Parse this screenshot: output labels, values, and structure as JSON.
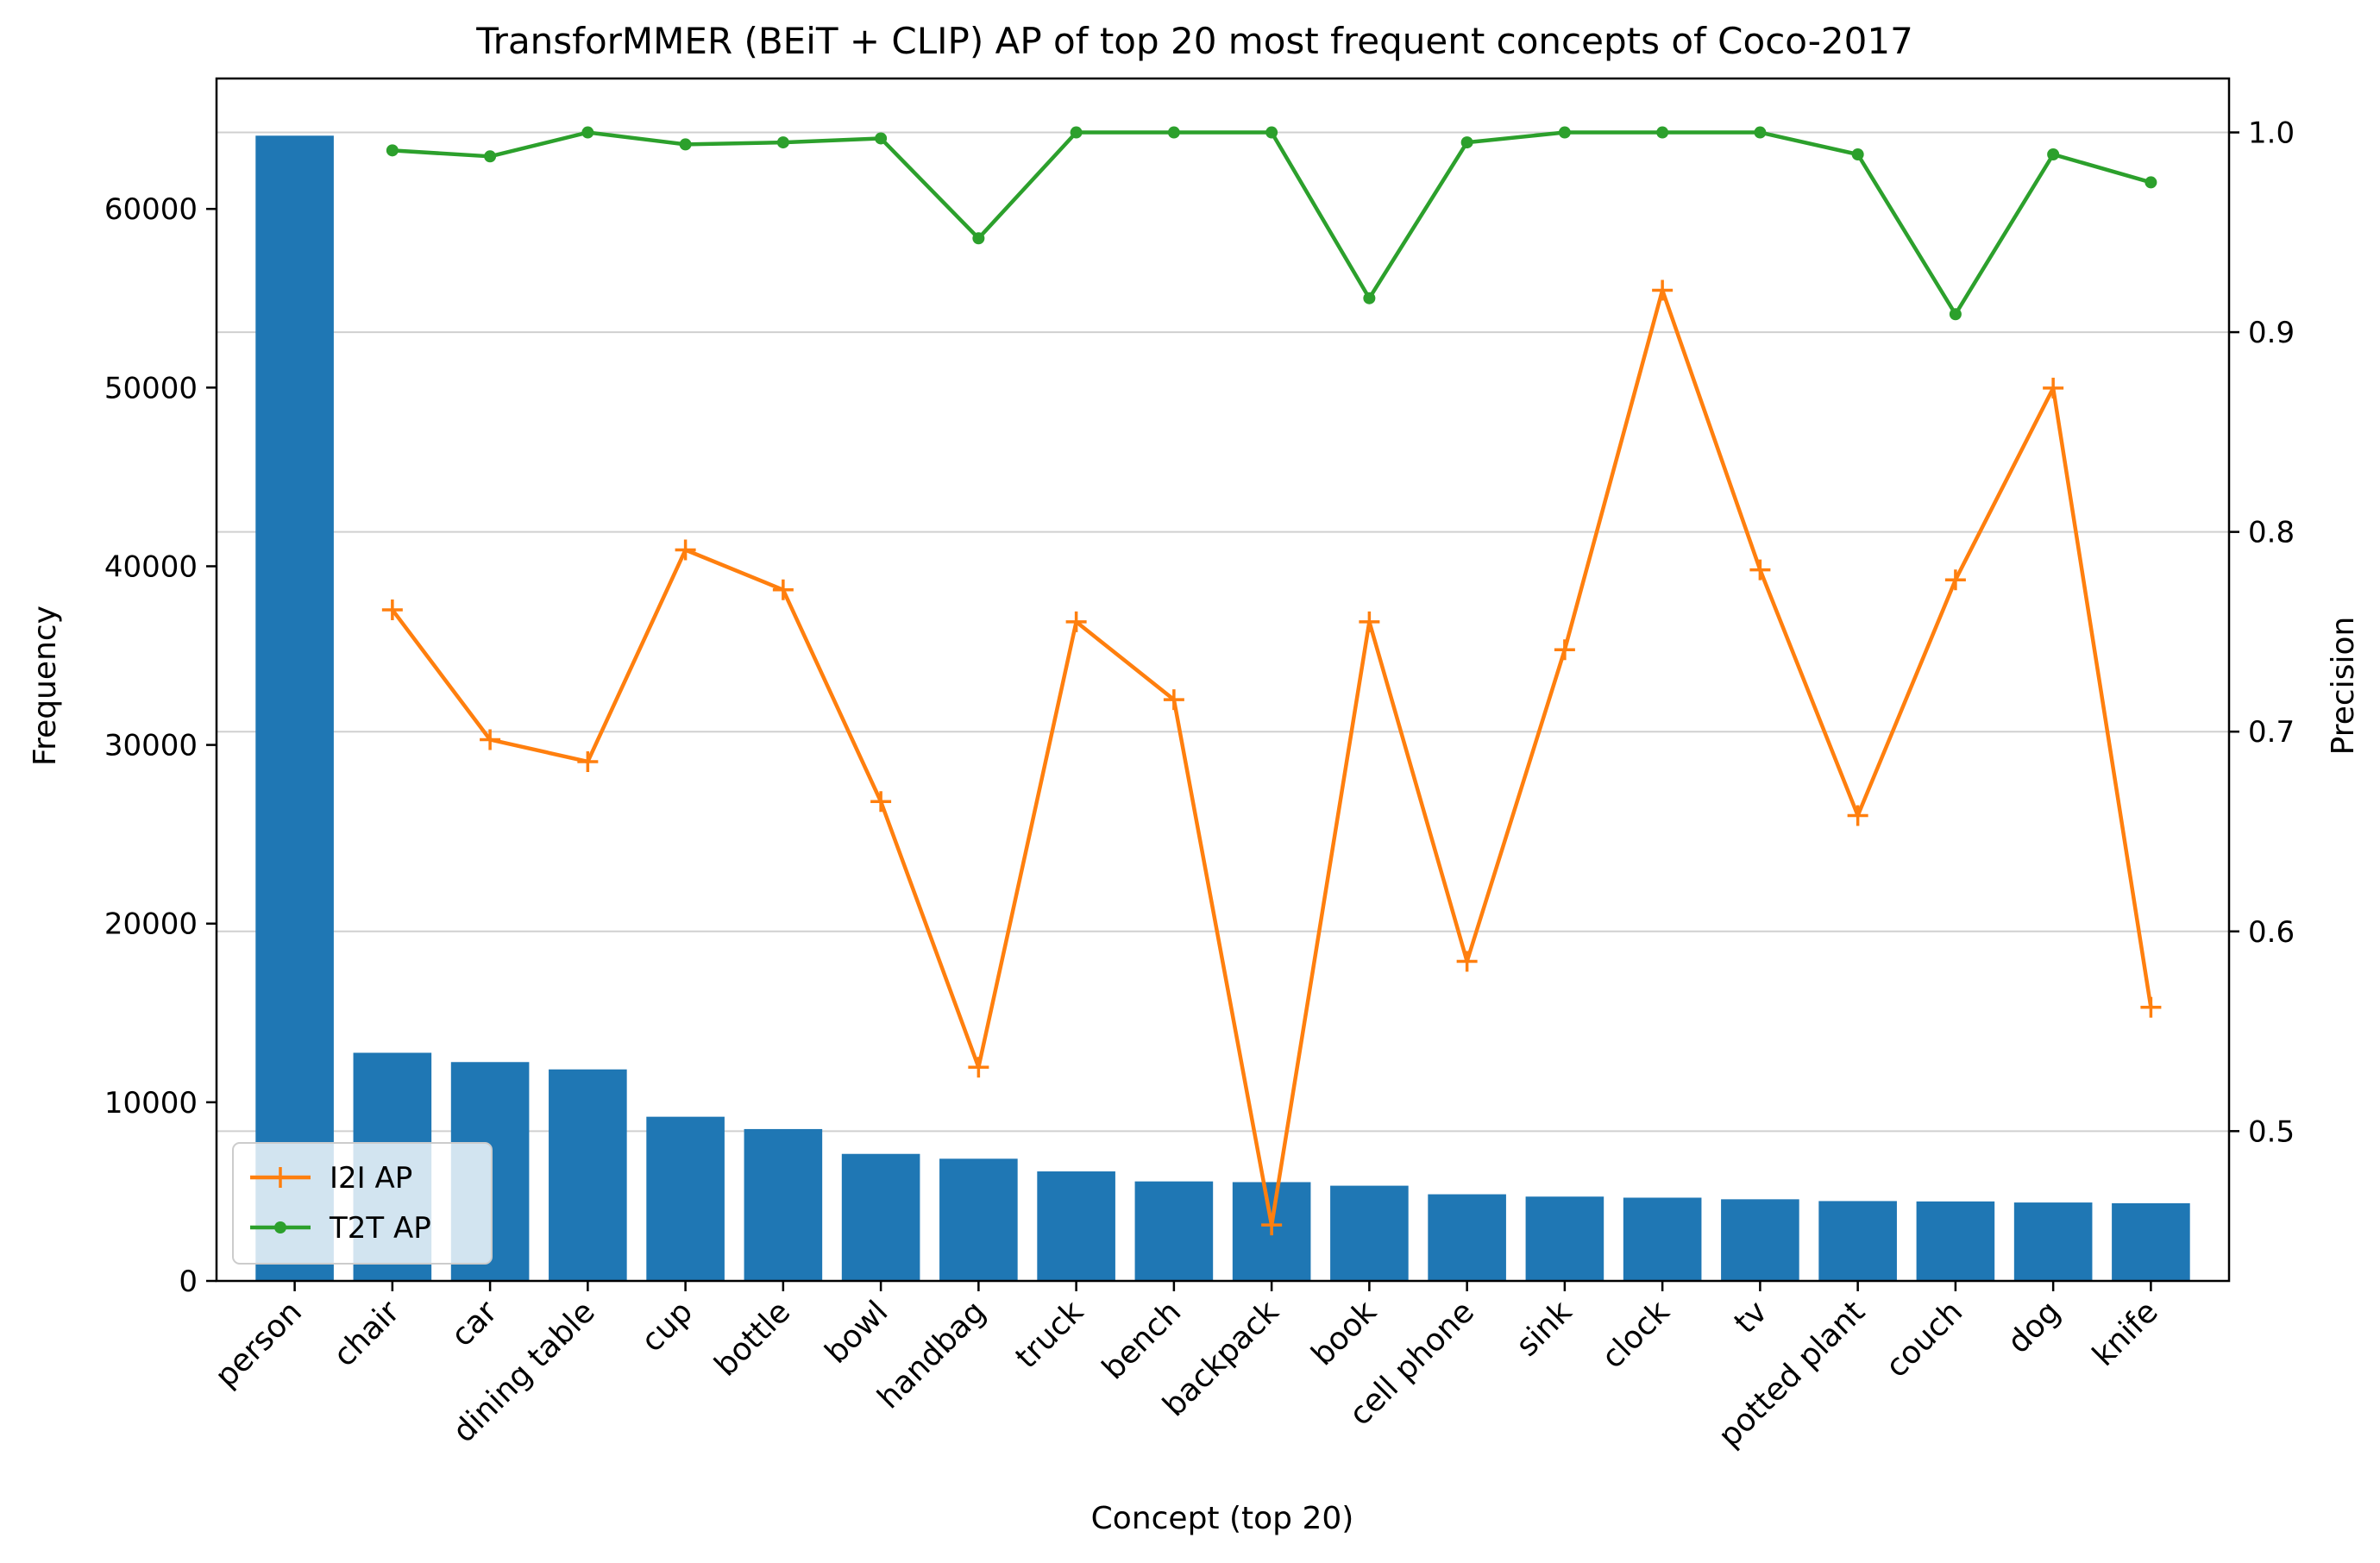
{
  "chart_data": {
    "type": "bar",
    "title": "TransforMMER (BEiT + CLIP) AP of top 20 most frequent concepts of Coco-2017",
    "xlabel": "Concept (top 20)",
    "ylabel": "Frequency",
    "y2label": "Precision",
    "categories": [
      "person",
      "chair",
      "car",
      "dining table",
      "cup",
      "bottle",
      "bowl",
      "handbag",
      "truck",
      "bench",
      "backpack",
      "book",
      "cell phone",
      "sink",
      "clock",
      "tv",
      "potted plant",
      "couch",
      "dog",
      "knife"
    ],
    "bar_series": {
      "name": "",
      "color": "#1f77b4",
      "values": [
        64100,
        12770,
        12250,
        11840,
        9190,
        8500,
        7110,
        6840,
        6130,
        5570,
        5530,
        5330,
        4850,
        4720,
        4660,
        4570,
        4470,
        4450,
        4390,
        4350
      ]
    },
    "ylim": [
      0,
      67300
    ],
    "yticks": [
      0,
      10000,
      20000,
      30000,
      40000,
      50000,
      60000
    ],
    "y2lim": [
      0.425,
      1.027
    ],
    "y2ticks": [
      "0.5",
      "0.6",
      "0.7",
      "0.8",
      "0.9",
      "1.0"
    ],
    "y2tick_values": [
      0.5,
      0.6,
      0.7,
      0.8,
      0.9,
      1.0
    ],
    "grid": "horizontal, right axis",
    "legend_position": "lower-left",
    "line_series": [
      {
        "name": "I2I AP",
        "color": "#ff7f0e",
        "marker": "plus",
        "values": [
          null,
          0.761,
          0.696,
          0.685,
          0.791,
          0.771,
          0.665,
          0.532,
          0.755,
          0.716,
          0.453,
          0.755,
          0.585,
          0.741,
          0.921,
          0.781,
          0.658,
          0.776,
          0.872,
          0.562
        ]
      },
      {
        "name": "T2T AP",
        "color": "#2ca02c",
        "marker": "dot",
        "values": [
          null,
          0.991,
          0.988,
          1.0,
          0.994,
          0.995,
          0.997,
          0.947,
          1.0,
          1.0,
          1.0,
          0.917,
          0.995,
          1.0,
          1.0,
          1.0,
          0.989,
          0.909,
          0.989,
          0.975
        ]
      }
    ]
  }
}
